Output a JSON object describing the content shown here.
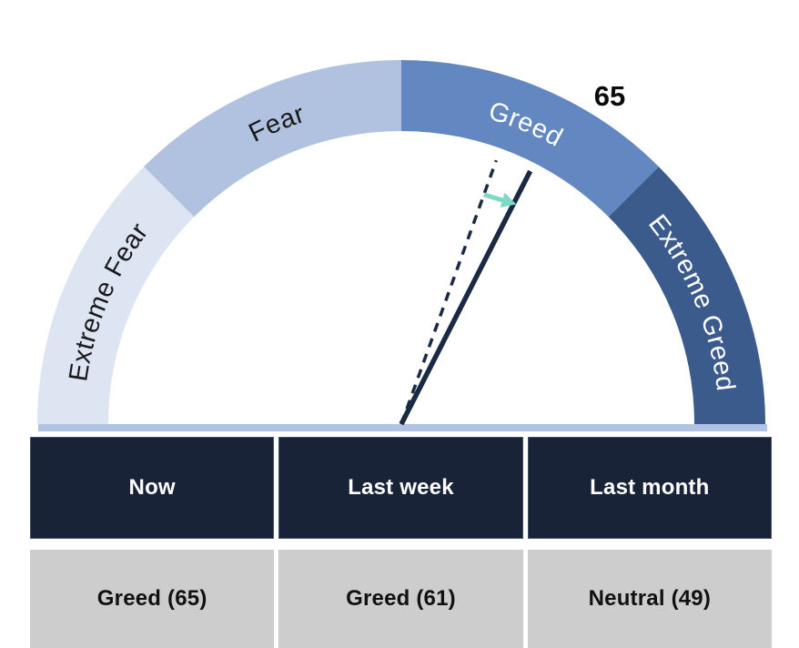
{
  "chart_data": {
    "type": "gauge",
    "title_visible": "",
    "min": 0,
    "max": 100,
    "current_value": 65,
    "current_value_label": "65",
    "previous_value": 61,
    "segments": [
      {
        "label": "Extreme Fear",
        "range": [
          0,
          25
        ],
        "color": "#dde4f2",
        "label_color": "#1a1a1a"
      },
      {
        "label": "Fear",
        "range": [
          25,
          50
        ],
        "color": "#b1c2e0",
        "label_color": "#1a1a1a"
      },
      {
        "label": "Greed",
        "range": [
          50,
          75
        ],
        "color": "#6287c1",
        "label_color": "#ffffff"
      },
      {
        "label": "Extreme Greed",
        "range": [
          75,
          100
        ],
        "color": "#3c5b8d",
        "label_color": "#ffffff"
      }
    ],
    "needles": [
      {
        "name": "now",
        "value": 65,
        "style": "solid"
      },
      {
        "name": "last-week",
        "value": 61,
        "style": "dashed"
      }
    ],
    "colors": {
      "needle": "#1b2a44",
      "change_arrow": "#7dd8c7",
      "baseline": "#b0c3e2"
    },
    "readings": [
      {
        "period": "Now",
        "sentiment": "Greed",
        "value": 65,
        "display": "Greed (65)"
      },
      {
        "period": "Last week",
        "sentiment": "Greed",
        "value": 61,
        "display": "Greed (61)"
      },
      {
        "period": "Last month",
        "sentiment": "Neutral",
        "value": 49,
        "display": "Neutral (49)"
      }
    ]
  },
  "table": {
    "headers": [
      "Now",
      "Last week",
      "Last month"
    ],
    "values": [
      "Greed (65)",
      "Greed (61)",
      "Neutral (49)"
    ],
    "header_bg": "#192338",
    "header_text": "#ffffff",
    "value_bg": "#cdcdcd",
    "value_text": "#111111"
  }
}
